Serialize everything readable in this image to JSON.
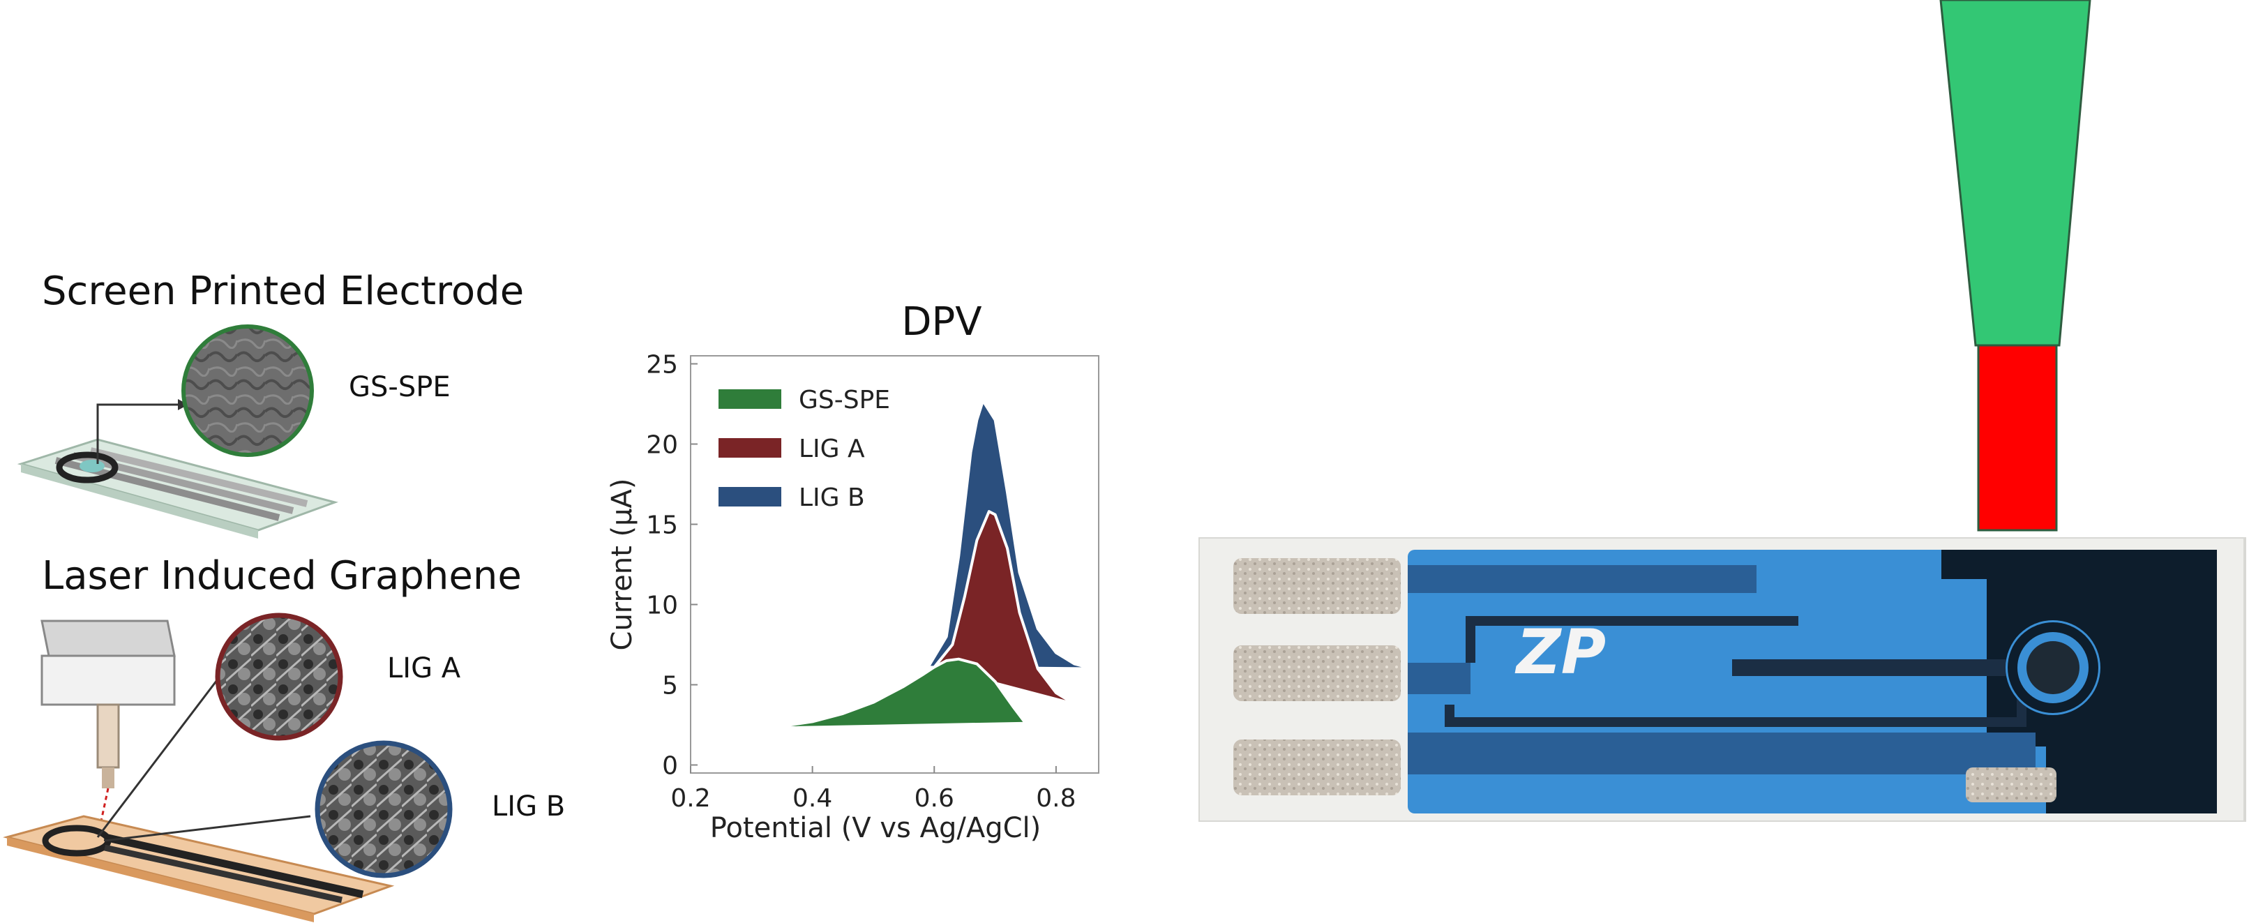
{
  "left_panel": {
    "spe_heading": "Screen Printed Electrode",
    "spe_label": "GS-SPE",
    "lig_heading": "Laser Induced Graphene",
    "lig_a_label": "LIG A",
    "lig_b_label": "LIG B"
  },
  "chart_data": {
    "type": "area",
    "title": "DPV",
    "xlabel": "Potential (V vs Ag/AgCl)",
    "ylabel": "Current (μA)",
    "xlim": [
      0.2,
      0.87
    ],
    "ylim": [
      -0.5,
      25.5
    ],
    "xticks": [
      0.2,
      0.4,
      0.6,
      0.8
    ],
    "yticks": [
      0,
      5,
      10,
      15,
      20,
      25
    ],
    "xtick_labels": [
      "0.2",
      "0.4",
      "0.6",
      "0.8"
    ],
    "ytick_labels": [
      "0",
      "5",
      "10",
      "15",
      "20",
      "25"
    ],
    "grid": false,
    "legend_position": "top-left",
    "series": [
      {
        "name": "GS-SPE",
        "color": "#2f7d3a",
        "x": [
          0.33,
          0.4,
          0.45,
          0.5,
          0.55,
          0.58,
          0.6,
          0.62,
          0.64,
          0.67,
          0.7,
          0.73,
          0.75
        ],
        "y": [
          2.3,
          2.7,
          3.2,
          3.9,
          4.9,
          5.6,
          6.1,
          6.5,
          6.6,
          6.3,
          5.2,
          3.6,
          2.6
        ]
      },
      {
        "name": "LIG A",
        "color": "#7a2426",
        "x": [
          0.6,
          0.63,
          0.65,
          0.67,
          0.69,
          0.7,
          0.72,
          0.74,
          0.77,
          0.8,
          0.83
        ],
        "y": [
          6.1,
          7.5,
          10.5,
          14.0,
          15.8,
          15.6,
          13.5,
          9.5,
          6.0,
          4.5,
          3.8
        ]
      },
      {
        "name": "LIG B",
        "color": "#2b4f7e",
        "x": [
          0.59,
          0.62,
          0.64,
          0.66,
          0.67,
          0.68,
          0.7,
          0.72,
          0.74,
          0.77,
          0.8,
          0.83,
          0.86
        ],
        "y": [
          6.1,
          8.0,
          13.0,
          19.5,
          21.5,
          22.7,
          21.5,
          17.0,
          12.0,
          8.5,
          7.0,
          6.3,
          6.0
        ]
      }
    ]
  },
  "colors": {
    "indicator_top": "#33c774",
    "indicator_bottom": "#ff0000",
    "strip_blue": "#3a8fd5",
    "strip_dark": "#0d1d2c"
  },
  "strip": {
    "logo_text": "ZP"
  }
}
